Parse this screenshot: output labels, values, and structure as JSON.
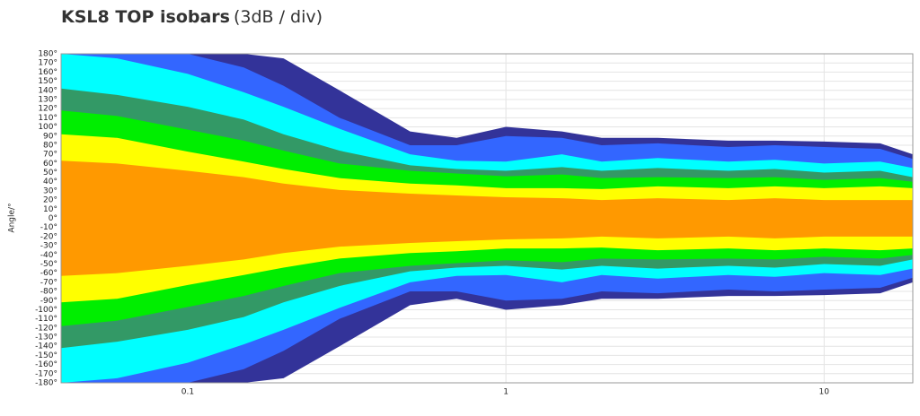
{
  "chart_data": {
    "type": "isobar",
    "title": "KSL8 TOP isobars",
    "subtitle": "(3dB / div)",
    "y_label": "Angle/°",
    "log_x": true,
    "grid": true,
    "xlim": [
      0.04,
      19
    ],
    "xticks": [
      0.1,
      1,
      10
    ],
    "ylim": [
      -180,
      180
    ],
    "yticks": [
      {
        "value": 180,
        "label": "180°"
      },
      {
        "value": 170,
        "label": "170°"
      },
      {
        "value": 160,
        "label": "160°"
      },
      {
        "value": 150,
        "label": "150°"
      },
      {
        "value": 140,
        "label": "140°"
      },
      {
        "value": 130,
        "label": "130°"
      },
      {
        "value": 120,
        "label": "120°"
      },
      {
        "value": 110,
        "label": "110°"
      },
      {
        "value": 100,
        "label": "100°"
      },
      {
        "value": 90,
        "label": "90°"
      },
      {
        "value": 80,
        "label": "80°"
      },
      {
        "value": 70,
        "label": "70°"
      },
      {
        "value": 60,
        "label": "60°"
      },
      {
        "value": 50,
        "label": "50°"
      },
      {
        "value": 40,
        "label": "40°"
      },
      {
        "value": 30,
        "label": "30°"
      },
      {
        "value": 20,
        "label": "20°"
      },
      {
        "value": 10,
        "label": "10°"
      },
      {
        "value": 0,
        "label": "0°"
      },
      {
        "value": -10,
        "label": "-10°"
      },
      {
        "value": -20,
        "label": "-20°"
      },
      {
        "value": -30,
        "label": "-30°"
      },
      {
        "value": -40,
        "label": "-40°"
      },
      {
        "value": -50,
        "label": "-50°"
      },
      {
        "value": -60,
        "label": "-60°"
      },
      {
        "value": -70,
        "label": "-70°"
      },
      {
        "value": -80,
        "label": "-80°"
      },
      {
        "value": -90,
        "label": "-90°"
      },
      {
        "value": -100,
        "label": "-100°"
      },
      {
        "value": -110,
        "label": "-110°"
      },
      {
        "value": -120,
        "label": "-120°"
      },
      {
        "value": -130,
        "label": "-130°"
      },
      {
        "value": -140,
        "label": "-140°"
      },
      {
        "value": -150,
        "label": "-150°"
      },
      {
        "value": -160,
        "label": "-160°"
      },
      {
        "value": -170,
        "label": "-170°"
      },
      {
        "value": -180,
        "label": "-180°"
      }
    ],
    "x": [
      0.04,
      0.06,
      0.1,
      0.15,
      0.2,
      0.3,
      0.5,
      0.7,
      1,
      1.5,
      2,
      3,
      5,
      7,
      10,
      15,
      19
    ],
    "series": [
      {
        "color": "#333399",
        "values": [
          180,
          180,
          180,
          180,
          175,
          140,
          95,
          88,
          100,
          95,
          88,
          88,
          85,
          85,
          84,
          82,
          70
        ]
      },
      {
        "color": "#3366ff",
        "values": [
          180,
          180,
          180,
          165,
          145,
          110,
          80,
          80,
          90,
          88,
          80,
          82,
          78,
          80,
          78,
          76,
          65
        ]
      },
      {
        "color": "#00ffff",
        "values": [
          180,
          175,
          158,
          138,
          122,
          98,
          70,
          63,
          62,
          70,
          62,
          66,
          62,
          64,
          60,
          62,
          55
        ]
      },
      {
        "color": "#339966",
        "values": [
          142,
          135,
          122,
          108,
          92,
          74,
          58,
          54,
          52,
          56,
          52,
          55,
          52,
          54,
          50,
          52,
          45
        ]
      },
      {
        "color": "#00ee00",
        "values": [
          118,
          112,
          97,
          85,
          74,
          60,
          52,
          49,
          46,
          48,
          44,
          45,
          44,
          45,
          42,
          44,
          40
        ]
      },
      {
        "color": "#ffff00",
        "values": [
          92,
          88,
          73,
          62,
          54,
          44,
          38,
          36,
          33,
          33,
          32,
          35,
          33,
          35,
          33,
          35,
          33
        ]
      },
      {
        "color": "#ff9900",
        "values": [
          63,
          60,
          52,
          45,
          38,
          31,
          27,
          25,
          23,
          22,
          20,
          22,
          20,
          22,
          20,
          20,
          20
        ]
      }
    ]
  }
}
